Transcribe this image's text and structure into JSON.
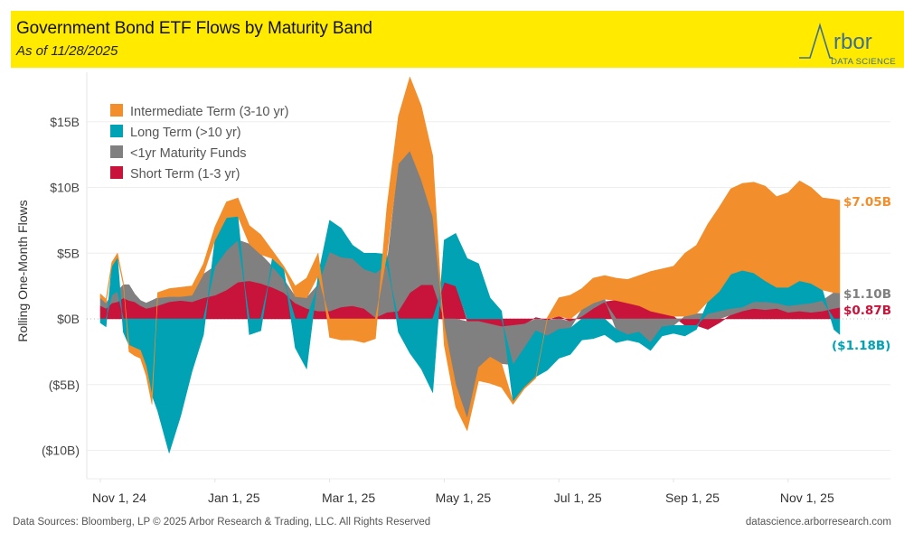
{
  "header": {
    "title": "Government Bond ETF Flows by Maturity Band",
    "subtitle": "As of 11/28/2025",
    "logo_word": "Arbor",
    "logo_sub": "DATA SCIENCE"
  },
  "footer": {
    "sources": "Data Sources: Bloomberg, LP © 2025 Arbor Research & Trading, LLC. All Rights Reserved",
    "url": "datascience.arborresearch.com"
  },
  "chart_data": {
    "type": "area",
    "stacked": true,
    "title": "Government Bond ETF Flows by Maturity Band",
    "subtitle": "As of 11/28/2025",
    "xlabel": "",
    "ylabel": "Rolling One-Month Flows",
    "ylim": [
      -12,
      17.5
    ],
    "yticks": [
      {
        "value": 15,
        "label": "$15B"
      },
      {
        "value": 10,
        "label": "$10B"
      },
      {
        "value": 5,
        "label": "$5B"
      },
      {
        "value": 0,
        "label": "$0B"
      },
      {
        "value": -5,
        "label": "($5B)"
      },
      {
        "value": -10,
        "label": "($10B)"
      }
    ],
    "xlim_months": [
      -0.5,
      13.3
    ],
    "xticks": [
      {
        "month": 0,
        "label": "Nov 1, 24"
      },
      {
        "month": 2,
        "label": "Jan 1, 25"
      },
      {
        "month": 4,
        "label": "Mar 1, 25"
      },
      {
        "month": 6,
        "label": "May 1, 25"
      },
      {
        "month": 8,
        "label": "Jul 1, 25"
      },
      {
        "month": 10,
        "label": "Sep 1, 25"
      },
      {
        "month": 12,
        "label": "Nov 1, 25"
      }
    ],
    "grid": true,
    "legend_position": "top-left",
    "x_unit": "months since Nov 1, 2024",
    "x": [
      0,
      0.1,
      0.2,
      0.3,
      0.4,
      0.5,
      0.6,
      0.7,
      0.8,
      0.9,
      1.0,
      1.2,
      1.4,
      1.6,
      1.8,
      2.0,
      2.2,
      2.4,
      2.6,
      2.8,
      3.0,
      3.2,
      3.4,
      3.6,
      3.8,
      4.0,
      4.2,
      4.4,
      4.6,
      4.8,
      5.0,
      5.2,
      5.4,
      5.6,
      5.8,
      6.0,
      6.2,
      6.4,
      6.6,
      6.8,
      7.0,
      7.2,
      7.4,
      7.6,
      7.8,
      8.0,
      8.2,
      8.4,
      8.6,
      8.8,
      9.0,
      9.2,
      9.4,
      9.6,
      9.8,
      10.0,
      10.2,
      10.4,
      10.6,
      10.8,
      11.0,
      11.2,
      11.4,
      11.6,
      11.8,
      12.0,
      12.2,
      12.4,
      12.6,
      12.8,
      12.9
    ],
    "series": [
      {
        "name": "Short Term (1-3 yr)",
        "color": "#c8133b",
        "values": [
          1.0,
          0.8,
          1.2,
          1.3,
          1.6,
          1.4,
          1.3,
          1.0,
          0.8,
          0.9,
          1.0,
          1.3,
          1.4,
          1.3,
          1.6,
          1.8,
          2.2,
          2.8,
          2.9,
          2.7,
          2.4,
          2.0,
          1.2,
          0.8,
          0.6,
          0.6,
          0.9,
          1.0,
          0.8,
          0.1,
          0.5,
          0.6,
          2.0,
          2.6,
          2.6,
          2.8,
          2.5,
          -0.2,
          -0.2,
          -0.4,
          -0.6,
          -0.5,
          -0.4,
          0.1,
          -0.1,
          0.2,
          -0.2,
          0.2,
          0.8,
          1.3,
          1.4,
          1.2,
          1.0,
          0.6,
          0.4,
          0.2,
          -0.5,
          -0.5,
          -0.8,
          -0.3,
          0.3,
          0.6,
          0.8,
          0.7,
          0.8,
          0.5,
          0.6,
          0.5,
          0.6,
          0.8,
          0.87
        ]
      },
      {
        "name": "<1yr Maturity Funds",
        "color": "#808080",
        "values": [
          0.6,
          0.4,
          0.6,
          0.8,
          1.0,
          1.2,
          0.6,
          0.4,
          0.4,
          0.5,
          0.6,
          0.4,
          0.3,
          0.5,
          1.8,
          2.2,
          3.0,
          3.2,
          2.8,
          2.2,
          1.6,
          1.0,
          0.5,
          0.8,
          2.0,
          4.5,
          3.8,
          3.6,
          3.0,
          3.4,
          3.6,
          11.2,
          10.8,
          8.0,
          5.2,
          -0.5,
          -5.0,
          -7.4,
          -3.5,
          -2.5,
          -2.8,
          -3.0,
          -1.8,
          -0.9,
          -1.2,
          -0.8,
          -0.5,
          0.5,
          0.4,
          0.2,
          -0.8,
          -1.2,
          -1.0,
          -1.8,
          -0.6,
          -0.5,
          0.2,
          0.4,
          0.4,
          0.6,
          0.5,
          0.3,
          0.5,
          0.6,
          0.4,
          0.5,
          0.5,
          0.7,
          0.8,
          1.2,
          1.1
        ]
      },
      {
        "name": "Long Term (>10 yr)",
        "color": "#00a2b4",
        "values": [
          -0.3,
          -0.6,
          2.2,
          2.6,
          -1.0,
          -2.0,
          -2.2,
          -2.4,
          -3.6,
          -5.8,
          -7.0,
          -10.2,
          -7.4,
          -4.0,
          -1.2,
          2.0,
          2.5,
          1.8,
          -1.2,
          -0.9,
          0.6,
          0.8,
          -2.2,
          -3.8,
          0.7,
          2.4,
          2.2,
          1.0,
          1.2,
          1.5,
          0.8,
          -1.0,
          -2.6,
          -3.8,
          -5.6,
          3.2,
          4.0,
          4.6,
          4.2,
          1.6,
          0.6,
          -2.8,
          -3.0,
          -3.5,
          -2.6,
          -2.2,
          -2.0,
          -1.6,
          -1.5,
          -1.2,
          -1.0,
          -0.4,
          -0.8,
          -0.6,
          -0.7,
          -0.6,
          -0.8,
          -0.3,
          0.9,
          1.5,
          2.6,
          2.8,
          2.2,
          1.6,
          1.2,
          1.4,
          1.8,
          1.5,
          0.8,
          -0.8,
          -1.18
        ]
      },
      {
        "name": "Intermediate Term (3-10 yr)",
        "color": "#f28e2b",
        "values": [
          0.3,
          0.3,
          0.3,
          0.3,
          0.2,
          -0.5,
          -0.6,
          -0.6,
          -0.7,
          -0.7,
          0.4,
          0.6,
          0.7,
          0.7,
          0.8,
          1.0,
          1.2,
          1.4,
          1.4,
          1.5,
          0.6,
          0.2,
          0.8,
          1.5,
          1.7,
          -1.4,
          -1.6,
          -1.6,
          -1.8,
          -1.5,
          3.6,
          3.6,
          5.6,
          5.6,
          4.6,
          -1.5,
          -1.7,
          -0.9,
          -1.0,
          -2.0,
          -1.8,
          -0.2,
          -0.1,
          -0.1,
          0.1,
          1.4,
          1.8,
          1.6,
          1.9,
          1.8,
          1.7,
          1.8,
          2.3,
          3.0,
          3.4,
          3.8,
          4.8,
          5.2,
          5.9,
          6.4,
          6.5,
          6.6,
          6.9,
          7.2,
          6.9,
          7.2,
          7.6,
          7.3,
          7.0,
          7.1,
          7.05
        ]
      }
    ],
    "end_labels": [
      {
        "series": "Intermediate Term (3-10 yr)",
        "label": "$7.05B",
        "value": 7.05,
        "color": "#f28e2b"
      },
      {
        "series": "<1yr Maturity Funds",
        "label": "$1.10B",
        "value": 1.1,
        "color": "#808080"
      },
      {
        "series": "Short Term (1-3 yr)",
        "label": "$0.87B",
        "value": 0.87,
        "color": "#c8133b"
      },
      {
        "series": "Long Term (>10 yr)",
        "label": "($1.18B)",
        "value": -1.18,
        "color": "#00a2b4"
      }
    ],
    "legend": [
      {
        "label": "Intermediate Term (3-10 yr)",
        "color": "#f28e2b"
      },
      {
        "label": "Long Term (>10 yr)",
        "color": "#00a2b4"
      },
      {
        "label": "<1yr Maturity Funds",
        "color": "#808080"
      },
      {
        "label": "Short Term (1-3 yr)",
        "color": "#c8133b"
      }
    ]
  }
}
